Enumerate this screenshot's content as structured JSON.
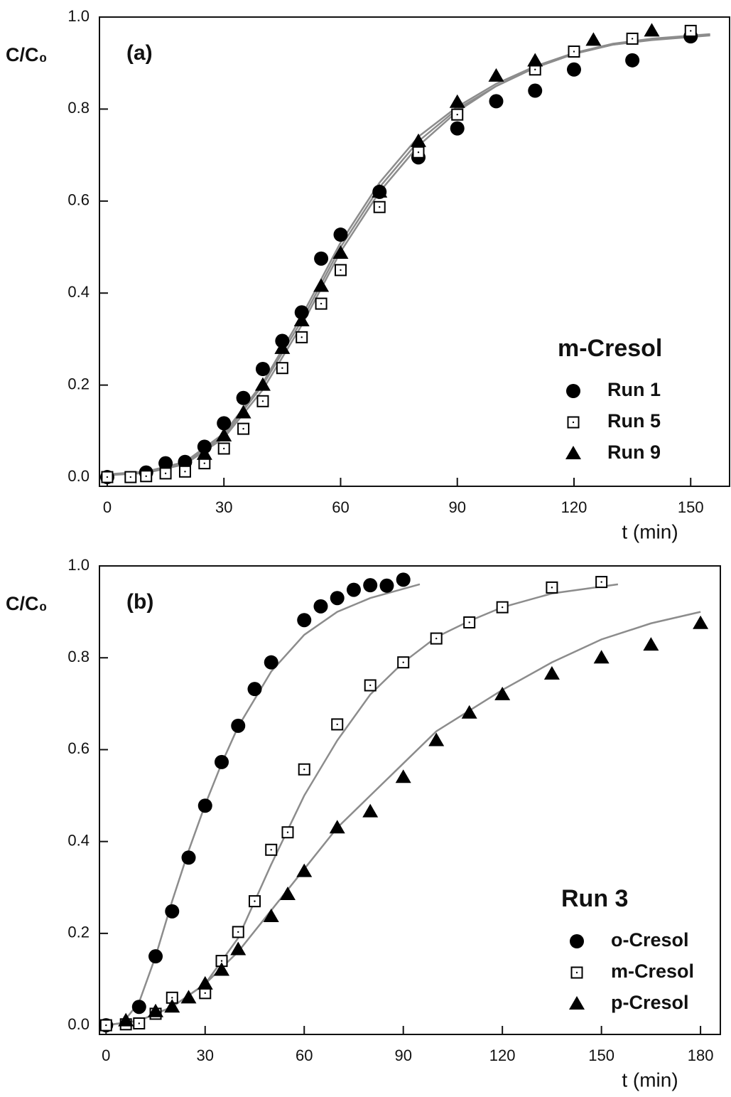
{
  "chart_data": [
    {
      "type": "scatter",
      "panel_label": "(a)",
      "ylabel": "C/C₀",
      "xlabel": "t (min)",
      "xlim": [
        -2,
        160
      ],
      "ylim": [
        -0.02,
        1.0
      ],
      "xticks": [
        0,
        30,
        60,
        90,
        120,
        150
      ],
      "yticks": [
        {
          "value": 0,
          "label": "0.0"
        },
        {
          "value": 0.2,
          "label": "0.2"
        },
        {
          "value": 0.4,
          "label": "0.4"
        },
        {
          "value": 0.6,
          "label": "0.6"
        },
        {
          "value": 0.8,
          "label": "0.8"
        },
        {
          "value": 1,
          "label": "1.0"
        }
      ],
      "legend_title": "m-Cresol",
      "legend": "lower right",
      "series": [
        {
          "name": "Run 1",
          "marker": "circle",
          "color": "#000000",
          "x": [
            0,
            10,
            15,
            20,
            25,
            30,
            35,
            40,
            45,
            50,
            55,
            60,
            70,
            80,
            90,
            100,
            110,
            120,
            135,
            150
          ],
          "values": [
            0.0,
            0.01,
            0.03,
            0.033,
            0.066,
            0.117,
            0.172,
            0.235,
            0.296,
            0.358,
            0.475,
            0.527,
            0.62,
            0.695,
            0.758,
            0.817,
            0.84,
            0.886,
            0.906,
            0.958
          ]
        },
        {
          "name": "Run 5",
          "marker": "square",
          "color": "#000000",
          "x": [
            0,
            6,
            10,
            15,
            20,
            25,
            30,
            35,
            40,
            45,
            50,
            55,
            60,
            70,
            80,
            90,
            110,
            120,
            135,
            150
          ],
          "values": [
            0.0,
            0.0,
            0.002,
            0.008,
            0.012,
            0.03,
            0.062,
            0.105,
            0.165,
            0.237,
            0.304,
            0.377,
            0.45,
            0.587,
            0.706,
            0.788,
            0.886,
            0.925,
            0.953,
            0.97
          ]
        },
        {
          "name": "Run 9",
          "marker": "triangle",
          "color": "#000000",
          "x": [
            25,
            30,
            35,
            40,
            45,
            50,
            55,
            60,
            70,
            80,
            90,
            100,
            110,
            125,
            140
          ],
          "values": [
            0.05,
            0.09,
            0.14,
            0.2,
            0.28,
            0.34,
            0.415,
            0.487,
            0.62,
            0.73,
            0.815,
            0.872,
            0.905,
            0.95,
            0.97
          ]
        },
        {
          "marker": "line",
          "color": "#8c8c8c",
          "x": [
            0,
            10,
            20,
            30,
            40,
            50,
            60,
            70,
            80,
            90,
            100,
            110,
            120,
            130,
            140,
            155
          ],
          "values": [
            0.005,
            0.01,
            0.03,
            0.09,
            0.2,
            0.34,
            0.5,
            0.63,
            0.73,
            0.8,
            0.85,
            0.89,
            0.92,
            0.94,
            0.95,
            0.96
          ]
        },
        {
          "marker": "line",
          "color": "#8c8c8c",
          "x": [
            0,
            10,
            20,
            30,
            40,
            50,
            60,
            70,
            80,
            90,
            100,
            110,
            120,
            130,
            140,
            155
          ],
          "values": [
            0.004,
            0.009,
            0.028,
            0.085,
            0.19,
            0.33,
            0.49,
            0.62,
            0.72,
            0.795,
            0.85,
            0.89,
            0.92,
            0.94,
            0.952,
            0.962
          ]
        },
        {
          "marker": "line",
          "color": "#8c8c8c",
          "x": [
            0,
            10,
            20,
            30,
            40,
            50,
            60,
            70,
            80,
            90,
            100,
            110,
            120,
            130,
            140,
            155
          ],
          "values": [
            0.006,
            0.012,
            0.033,
            0.095,
            0.205,
            0.35,
            0.51,
            0.64,
            0.74,
            0.805,
            0.855,
            0.893,
            0.922,
            0.942,
            0.953,
            0.963
          ]
        }
      ]
    },
    {
      "type": "scatter",
      "panel_label": "(b)",
      "ylabel": "C/C₀",
      "xlabel": "t (min)",
      "xlim": [
        -2,
        186
      ],
      "ylim": [
        -0.02,
        1.0
      ],
      "xticks": [
        0,
        30,
        60,
        90,
        120,
        150,
        180
      ],
      "yticks": [
        {
          "value": 0,
          "label": "0.0"
        },
        {
          "value": 0.2,
          "label": "0.2"
        },
        {
          "value": 0.4,
          "label": "0.4"
        },
        {
          "value": 0.6,
          "label": "0.6"
        },
        {
          "value": 0.8,
          "label": "0.8"
        },
        {
          "value": 1,
          "label": "1.0"
        }
      ],
      "legend_title": "Run 3",
      "legend": "lower right",
      "series": [
        {
          "name": "o-Cresol",
          "marker": "circle",
          "color": "#000000",
          "x": [
            0,
            10,
            15,
            20,
            25,
            30,
            35,
            40,
            45,
            50,
            60,
            65,
            70,
            75,
            80,
            85,
            90
          ],
          "values": [
            0.0,
            0.04,
            0.15,
            0.248,
            0.365,
            0.478,
            0.573,
            0.652,
            0.732,
            0.79,
            0.882,
            0.912,
            0.93,
            0.948,
            0.958,
            0.957,
            0.97
          ]
        },
        {
          "name": "m-Cresol",
          "marker": "square",
          "color": "#000000",
          "x": [
            0,
            6,
            10,
            15,
            20,
            30,
            35,
            40,
            45,
            50,
            55,
            60,
            70,
            80,
            90,
            100,
            110,
            120,
            135,
            150
          ],
          "values": [
            0.0,
            0.002,
            0.004,
            0.025,
            0.06,
            0.07,
            0.14,
            0.203,
            0.27,
            0.382,
            0.42,
            0.557,
            0.655,
            0.74,
            0.79,
            0.842,
            0.877,
            0.91,
            0.953,
            0.965
          ]
        },
        {
          "name": "p-Cresol",
          "marker": "triangle",
          "color": "#000000",
          "x": [
            6,
            15,
            20,
            25,
            30,
            35,
            40,
            50,
            55,
            60,
            70,
            80,
            90,
            100,
            110,
            120,
            135,
            150,
            165,
            180
          ],
          "values": [
            0.01,
            0.03,
            0.04,
            0.06,
            0.09,
            0.12,
            0.165,
            0.237,
            0.285,
            0.335,
            0.43,
            0.465,
            0.54,
            0.62,
            0.68,
            0.72,
            0.765,
            0.8,
            0.828,
            0.875
          ]
        },
        {
          "marker": "line",
          "color": "#8c8c8c",
          "x": [
            0,
            5,
            10,
            15,
            20,
            25,
            30,
            35,
            40,
            50,
            60,
            70,
            80,
            95
          ],
          "values": [
            0.0,
            0.005,
            0.05,
            0.15,
            0.27,
            0.38,
            0.48,
            0.57,
            0.65,
            0.77,
            0.85,
            0.9,
            0.93,
            0.96
          ]
        },
        {
          "marker": "line",
          "color": "#8c8c8c",
          "x": [
            0,
            10,
            20,
            30,
            40,
            50,
            60,
            70,
            80,
            90,
            100,
            110,
            120,
            135,
            155
          ],
          "values": [
            0.0,
            0.01,
            0.04,
            0.09,
            0.19,
            0.35,
            0.5,
            0.62,
            0.72,
            0.79,
            0.845,
            0.88,
            0.91,
            0.94,
            0.96
          ]
        },
        {
          "marker": "line",
          "color": "#8c8c8c",
          "x": [
            0,
            10,
            20,
            30,
            40,
            50,
            60,
            70,
            80,
            90,
            100,
            120,
            135,
            150,
            165,
            180
          ],
          "values": [
            0.0,
            0.01,
            0.04,
            0.09,
            0.16,
            0.25,
            0.34,
            0.43,
            0.5,
            0.57,
            0.64,
            0.73,
            0.79,
            0.84,
            0.875,
            0.9
          ]
        }
      ]
    }
  ]
}
